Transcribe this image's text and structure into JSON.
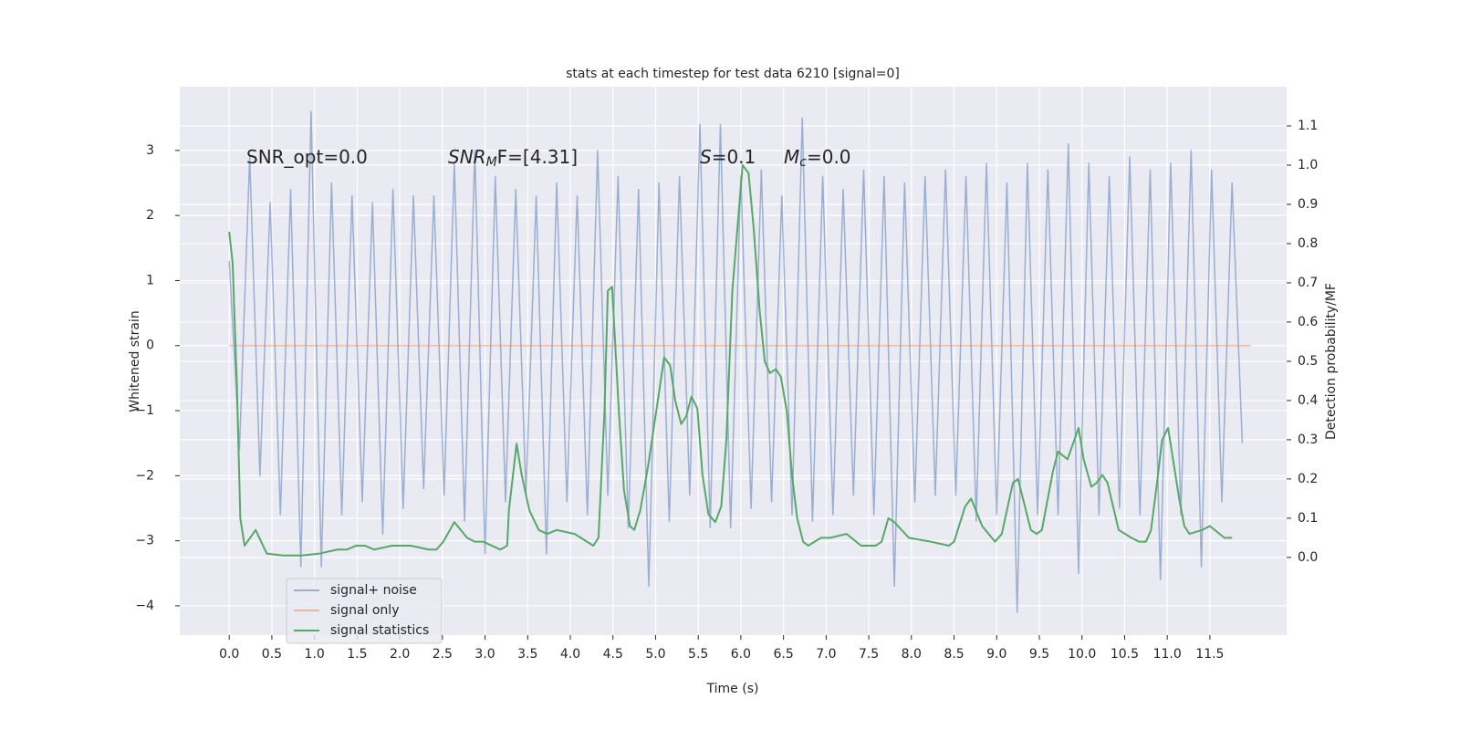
{
  "chart_data": {
    "type": "line",
    "title": "stats at each timestep for test data 6210 [signal=0]",
    "xlabel": "Time (s)",
    "ylabel": "Whitened strain",
    "y2label": "Detection probability/MF",
    "xlim": [
      -0.58,
      12.4
    ],
    "ylim": [
      -4.45,
      3.98
    ],
    "y2lim": [
      -0.198,
      1.2
    ],
    "xticks": [
      {
        "value": 0,
        "label": "0.0"
      },
      0.5,
      {
        "value": 1,
        "label": "1.0"
      },
      1.5,
      {
        "value": 2,
        "label": "2.0"
      },
      2.5,
      {
        "value": 3,
        "label": "3.0"
      },
      3.5,
      {
        "value": 4,
        "label": "4.0"
      },
      4.5,
      {
        "value": 5,
        "label": "5.0"
      },
      5.5,
      {
        "value": 6,
        "label": "6.0"
      },
      6.5,
      {
        "value": 7,
        "label": "7.0"
      },
      7.5,
      {
        "value": 8,
        "label": "8.0"
      },
      8.5,
      {
        "value": 9,
        "label": "9.0"
      },
      9.5,
      {
        "value": 10,
        "label": "10.0"
      },
      10.5,
      {
        "value": 11,
        "label": "11.0"
      },
      11.5
    ],
    "yticks": [
      {
        "value": -4,
        "label": "−4"
      },
      {
        "value": -3,
        "label": "−3"
      },
      {
        "value": -2,
        "label": "−2"
      },
      {
        "value": -1,
        "label": "−1"
      },
      0,
      1,
      2,
      3
    ],
    "y2ticks": [
      {
        "value": 0,
        "label": "0.0"
      },
      0.1,
      0.2,
      0.3,
      0.4,
      0.5,
      0.6,
      0.7,
      0.8,
      0.9,
      {
        "value": 1,
        "label": "1.0"
      },
      1.1
    ],
    "grid": true,
    "legend": "lower left",
    "annotations": [
      {
        "text": "SNR_opt=0.0"
      },
      {
        "text": "SNR",
        "sub": "M",
        "after": "F=[4.31]"
      },
      {
        "text": "S",
        "after": "=0.1"
      },
      {
        "text": "M",
        "sub": "c",
        "after": "=0.0"
      }
    ],
    "series": [
      {
        "name": "signal+ noise",
        "color": "#4c72b0",
        "alpha": 0.5,
        "x": [
          0,
          0.12,
          0.24,
          0.36,
          0.48,
          0.6,
          0.72,
          0.84,
          0.96,
          1.08,
          1.2,
          1.32,
          1.44,
          1.56,
          1.68,
          1.8,
          1.92,
          2.04,
          2.16,
          2.28,
          2.4,
          2.52,
          2.64,
          2.76,
          2.88,
          3.0,
          3.12,
          3.24,
          3.36,
          3.48,
          3.6,
          3.72,
          3.84,
          3.96,
          4.08,
          4.2,
          4.32,
          4.44,
          4.56,
          4.68,
          4.8,
          4.92,
          5.04,
          5.16,
          5.28,
          5.4,
          5.52,
          5.64,
          5.76,
          5.88,
          6.0,
          6.12,
          6.24,
          6.36,
          6.48,
          6.6,
          6.72,
          6.84,
          6.96,
          7.08,
          7.2,
          7.32,
          7.44,
          7.56,
          7.68,
          7.8,
          7.92,
          8.04,
          8.16,
          8.28,
          8.4,
          8.52,
          8.64,
          8.76,
          8.88,
          9.0,
          9.12,
          9.24,
          9.36,
          9.48,
          9.6,
          9.72,
          9.84,
          9.96,
          10.08,
          10.2,
          10.32,
          10.44,
          10.56,
          10.68,
          10.8,
          10.92,
          11.04,
          11.16,
          11.28,
          11.4,
          11.52,
          11.64,
          11.76,
          11.88
        ],
        "values": [
          1.3,
          -1.6,
          2.9,
          -2.0,
          2.2,
          -2.6,
          2.4,
          -3.4,
          3.6,
          -3.4,
          2.5,
          -2.6,
          2.3,
          -2.4,
          2.2,
          -2.9,
          2.4,
          -2.5,
          2.3,
          -2.2,
          2.3,
          -2.3,
          2.8,
          -2.7,
          3.0,
          -3.2,
          2.6,
          -2.4,
          2.4,
          -2.3,
          2.3,
          -3.2,
          2.5,
          -2.4,
          2.3,
          -2.6,
          3.0,
          -2.3,
          2.6,
          -2.8,
          2.4,
          -3.7,
          2.5,
          -2.7,
          2.6,
          -2.3,
          3.4,
          -2.8,
          3.4,
          -2.8,
          2.6,
          -2.5,
          2.7,
          -2.4,
          2.3,
          -2.6,
          3.5,
          -2.7,
          2.6,
          -2.6,
          2.4,
          -2.3,
          2.7,
          -2.6,
          2.6,
          -3.7,
          2.5,
          -2.4,
          2.6,
          -2.3,
          2.7,
          -2.3,
          2.6,
          -2.7,
          2.8,
          -2.6,
          2.5,
          -4.1,
          2.8,
          -2.6,
          2.7,
          -2.6,
          3.1,
          -3.5,
          2.8,
          -2.6,
          2.6,
          -2.5,
          2.9,
          -2.6,
          2.7,
          -3.6,
          2.8,
          -2.6,
          3.0,
          -3.4,
          2.7,
          -2.4,
          2.5,
          -1.5
        ]
      },
      {
        "name": "signal only",
        "color": "#dd8452",
        "alpha": 0.5,
        "x": [
          0,
          11.98
        ],
        "values": [
          0,
          0
        ]
      },
      {
        "name": "signal statistics",
        "color": "#55a868",
        "axis": "y2",
        "x": [
          0,
          0.04,
          0.09,
          0.13,
          0.18,
          0.31,
          0.44,
          0.63,
          0.85,
          1.06,
          1.27,
          1.38,
          1.49,
          1.59,
          1.7,
          1.91,
          2.13,
          2.34,
          2.43,
          2.51,
          2.64,
          2.79,
          2.88,
          2.98,
          3.18,
          3.26,
          3.28,
          3.37,
          3.43,
          3.52,
          3.63,
          3.73,
          3.84,
          4.05,
          4.27,
          4.33,
          4.4,
          4.44,
          4.49,
          4.57,
          4.63,
          4.7,
          4.75,
          4.82,
          4.91,
          5.04,
          5.1,
          5.17,
          5.23,
          5.3,
          5.36,
          5.42,
          5.49,
          5.55,
          5.62,
          5.7,
          5.77,
          5.83,
          5.9,
          5.96,
          6.02,
          6.09,
          6.15,
          6.22,
          6.28,
          6.34,
          6.41,
          6.47,
          6.54,
          6.6,
          6.66,
          6.73,
          6.79,
          6.94,
          7.05,
          7.24,
          7.41,
          7.58,
          7.65,
          7.73,
          7.8,
          7.97,
          8.23,
          8.44,
          8.5,
          8.63,
          8.7,
          8.83,
          8.98,
          9.06,
          9.19,
          9.25,
          9.4,
          9.47,
          9.53,
          9.66,
          9.72,
          9.83,
          9.96,
          10.02,
          10.11,
          10.17,
          10.24,
          10.3,
          10.43,
          10.58,
          10.67,
          10.75,
          10.81,
          10.88,
          10.94,
          11.01,
          11.14,
          11.2,
          11.26,
          11.41,
          11.5,
          11.67,
          11.76
        ],
        "values": [
          0.83,
          0.75,
          0.44,
          0.1,
          0.03,
          0.07,
          0.01,
          0.005,
          0.005,
          0.01,
          0.02,
          0.02,
          0.03,
          0.03,
          0.02,
          0.03,
          0.03,
          0.02,
          0.02,
          0.04,
          0.09,
          0.05,
          0.04,
          0.04,
          0.02,
          0.03,
          0.12,
          0.29,
          0.21,
          0.12,
          0.07,
          0.06,
          0.07,
          0.06,
          0.03,
          0.05,
          0.37,
          0.68,
          0.69,
          0.37,
          0.17,
          0.08,
          0.07,
          0.12,
          0.23,
          0.42,
          0.51,
          0.49,
          0.4,
          0.34,
          0.36,
          0.41,
          0.38,
          0.21,
          0.11,
          0.09,
          0.13,
          0.3,
          0.68,
          0.84,
          1.0,
          0.98,
          0.84,
          0.63,
          0.5,
          0.47,
          0.48,
          0.46,
          0.37,
          0.21,
          0.1,
          0.04,
          0.03,
          0.05,
          0.05,
          0.06,
          0.03,
          0.03,
          0.04,
          0.1,
          0.09,
          0.05,
          0.04,
          0.03,
          0.04,
          0.13,
          0.15,
          0.08,
          0.04,
          0.06,
          0.19,
          0.2,
          0.07,
          0.06,
          0.07,
          0.22,
          0.27,
          0.25,
          0.33,
          0.25,
          0.18,
          0.19,
          0.21,
          0.19,
          0.07,
          0.05,
          0.04,
          0.04,
          0.07,
          0.19,
          0.3,
          0.33,
          0.15,
          0.08,
          0.06,
          0.07,
          0.08,
          0.05,
          0.05
        ]
      }
    ]
  }
}
